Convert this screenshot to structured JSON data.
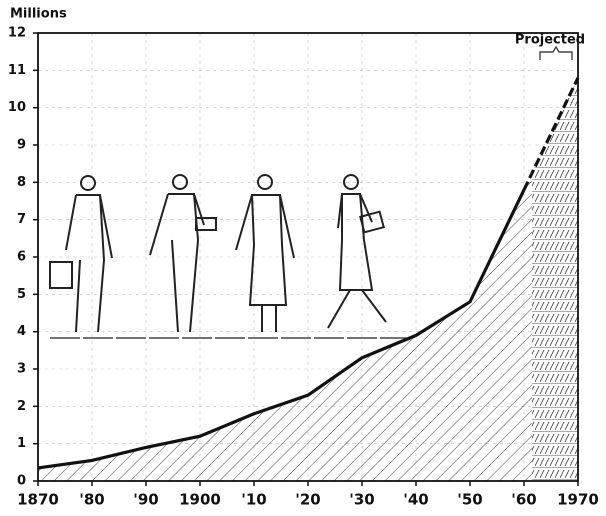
{
  "chart_data": {
    "type": "area",
    "y_axis_label": "Millions",
    "annotation": "Projected",
    "projected_from": 1960,
    "x": [
      1870,
      1880,
      1890,
      1900,
      1910,
      1920,
      1930,
      1940,
      1950,
      1960,
      1970
    ],
    "values": [
      0.35,
      0.55,
      0.9,
      1.2,
      1.8,
      2.3,
      3.3,
      3.9,
      4.8,
      7.8,
      10.8
    ],
    "color": "#111111",
    "xlim": [
      1870,
      1970
    ],
    "xticks": [
      1870,
      {
        "value": 1880,
        "label": "'80"
      },
      {
        "value": 1890,
        "label": "'90"
      },
      1900,
      {
        "value": 1910,
        "label": "'10"
      },
      {
        "value": 1920,
        "label": "'20"
      },
      {
        "value": 1930,
        "label": "'30"
      },
      {
        "value": 1940,
        "label": "'40"
      },
      {
        "value": 1950,
        "label": "'50"
      },
      {
        "value": 1960,
        "label": "'60"
      },
      1970
    ],
    "ylim": [
      0,
      12
    ],
    "yticks": [
      0,
      1,
      2,
      3,
      4,
      5,
      6,
      7,
      8,
      9,
      10,
      11,
      12
    ],
    "grid": true
  }
}
